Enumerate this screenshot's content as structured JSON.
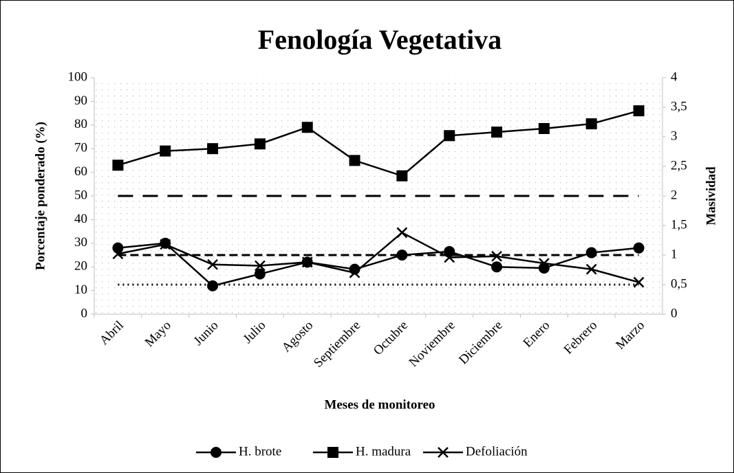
{
  "chart_data": {
    "type": "line",
    "title": "Fenología Vegetativa",
    "x_label": "Meses de monitoreo",
    "y_label": "Porcentaje ponderado (%)",
    "y2_label": "Masividad",
    "categories": [
      "Abril",
      "Mayo",
      "Junio",
      "Julio",
      "Agosto",
      "Septiembre",
      "Octubre",
      "Noviembre",
      "Diciembre",
      "Enero",
      "Febrero",
      "Marzo"
    ],
    "series": [
      {
        "name": "H. brote",
        "color": "#000000",
        "marker": "circle",
        "values": [
          28,
          30,
          12,
          17,
          22,
          19,
          25,
          26.5,
          20,
          19.5,
          26,
          28
        ]
      },
      {
        "name": "H. madura",
        "color": "#000000",
        "marker": "square",
        "values": [
          63,
          69,
          70,
          72,
          79,
          65,
          58.5,
          75.5,
          77,
          78.5,
          80.5,
          86
        ]
      },
      {
        "name": "Defoliación",
        "color": "#000000",
        "marker": "x",
        "values": [
          25.5,
          29.5,
          21,
          20.5,
          22,
          17.5,
          34.5,
          24,
          24.5,
          21.5,
          19,
          13.5
        ]
      }
    ],
    "reference_lines": [
      {
        "value": 2,
        "axis": "y2",
        "style": "long-dash"
      },
      {
        "value": 1,
        "axis": "y2",
        "style": "dash"
      },
      {
        "value": 0.5,
        "axis": "y2",
        "style": "dot"
      }
    ],
    "ylim": [
      0,
      100
    ],
    "yticks": [
      0,
      10,
      20,
      30,
      40,
      50,
      60,
      70,
      80,
      90,
      100
    ],
    "y2lim": [
      0,
      4
    ],
    "y2ticks": [
      0,
      {
        "value": 0.5,
        "label": "0,5"
      },
      1,
      {
        "value": 1.5,
        "label": "1,5"
      },
      2,
      {
        "value": 2.5,
        "label": "2,5"
      },
      3,
      {
        "value": 3.5,
        "label": "3,5"
      },
      4
    ],
    "grid": "dots",
    "legend": "bottom"
  }
}
